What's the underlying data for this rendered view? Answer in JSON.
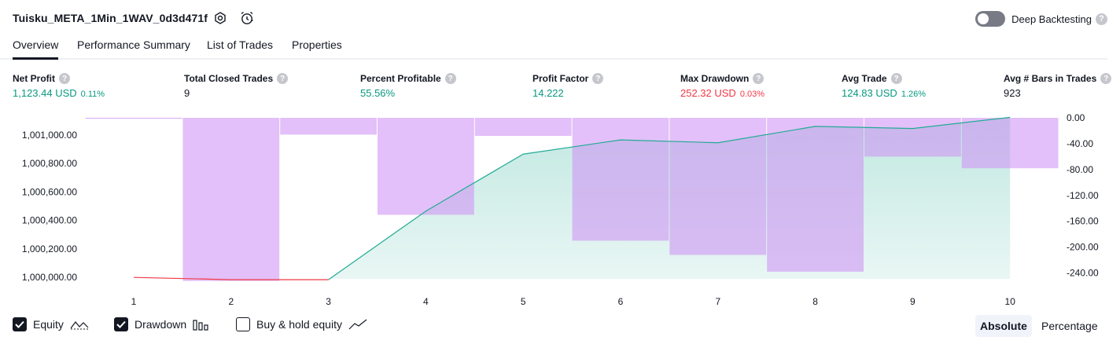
{
  "header": {
    "strategy_name": "Tuisku_META_1Min_1WAV_0d3d471f",
    "deep_backtesting_label": "Deep Backtesting",
    "help_glyph": "?"
  },
  "tabs": [
    {
      "label": "Overview",
      "active": true
    },
    {
      "label": "Performance Summary",
      "active": false
    },
    {
      "label": "List of Trades",
      "active": false
    },
    {
      "label": "Properties",
      "active": false
    }
  ],
  "metrics": [
    {
      "label": "Net Profit",
      "value": "1,123.44 USD",
      "pct": "0.11%",
      "color": "#089981"
    },
    {
      "label": "Total Closed Trades",
      "value": "9",
      "pct": "",
      "color": "#131722"
    },
    {
      "label": "Percent Profitable",
      "value": "55.56%",
      "pct": "",
      "color": "#089981"
    },
    {
      "label": "Profit Factor",
      "value": "14.222",
      "pct": "",
      "color": "#089981"
    },
    {
      "label": "Max Drawdown",
      "value": "252.32 USD",
      "pct": "0.03%",
      "color": "#f23645"
    },
    {
      "label": "Avg Trade",
      "value": "124.83 USD",
      "pct": "1.26%",
      "color": "#089981"
    },
    {
      "label": "Avg # Bars in Trades",
      "value": "923",
      "pct": "",
      "color": "#131722"
    }
  ],
  "chart_data": {
    "type": "bar",
    "x": [
      1,
      2,
      3,
      4,
      5,
      6,
      7,
      8,
      9,
      10
    ],
    "left_axis": {
      "ticks": [
        "1,001,000.00",
        "1,000,800.00",
        "1,000,600.00",
        "1,000,400.00",
        "1,000,200.00",
        "1,000,000.00"
      ],
      "tick_values": [
        1001000,
        1000800,
        1000600,
        1000400,
        1000200,
        1000000
      ],
      "range": [
        999990,
        1001120
      ]
    },
    "right_axis": {
      "ticks": [
        "0.00",
        "-40.00",
        "-80.00",
        "-120.00",
        "-160.00",
        "-200.00",
        "-240.00"
      ],
      "tick_values": [
        0,
        -40,
        -80,
        -120,
        -160,
        -200,
        -240
      ],
      "range": [
        -249,
        0
      ]
    },
    "series": [
      {
        "name": "Equity",
        "color": "#22ab94",
        "values": [
          1000000,
          999984,
          999984,
          1000465,
          1000865,
          1000965,
          1000945,
          1001060,
          1001045,
          1001123.44
        ]
      },
      {
        "name": "Drawdown",
        "color": "#ce93f5",
        "values": [
          0,
          -252.32,
          -26,
          -150,
          -28,
          -190,
          -212,
          -238,
          -60,
          -78
        ]
      }
    ],
    "first_point_color": "#f23645",
    "grid": false
  },
  "footer": {
    "options": [
      {
        "label": "Equity",
        "checked": true
      },
      {
        "label": "Drawdown",
        "checked": true
      },
      {
        "label": "Buy & hold equity",
        "checked": false
      }
    ],
    "modes": [
      {
        "label": "Absolute",
        "active": true
      },
      {
        "label": "Percentage",
        "active": false
      }
    ]
  }
}
